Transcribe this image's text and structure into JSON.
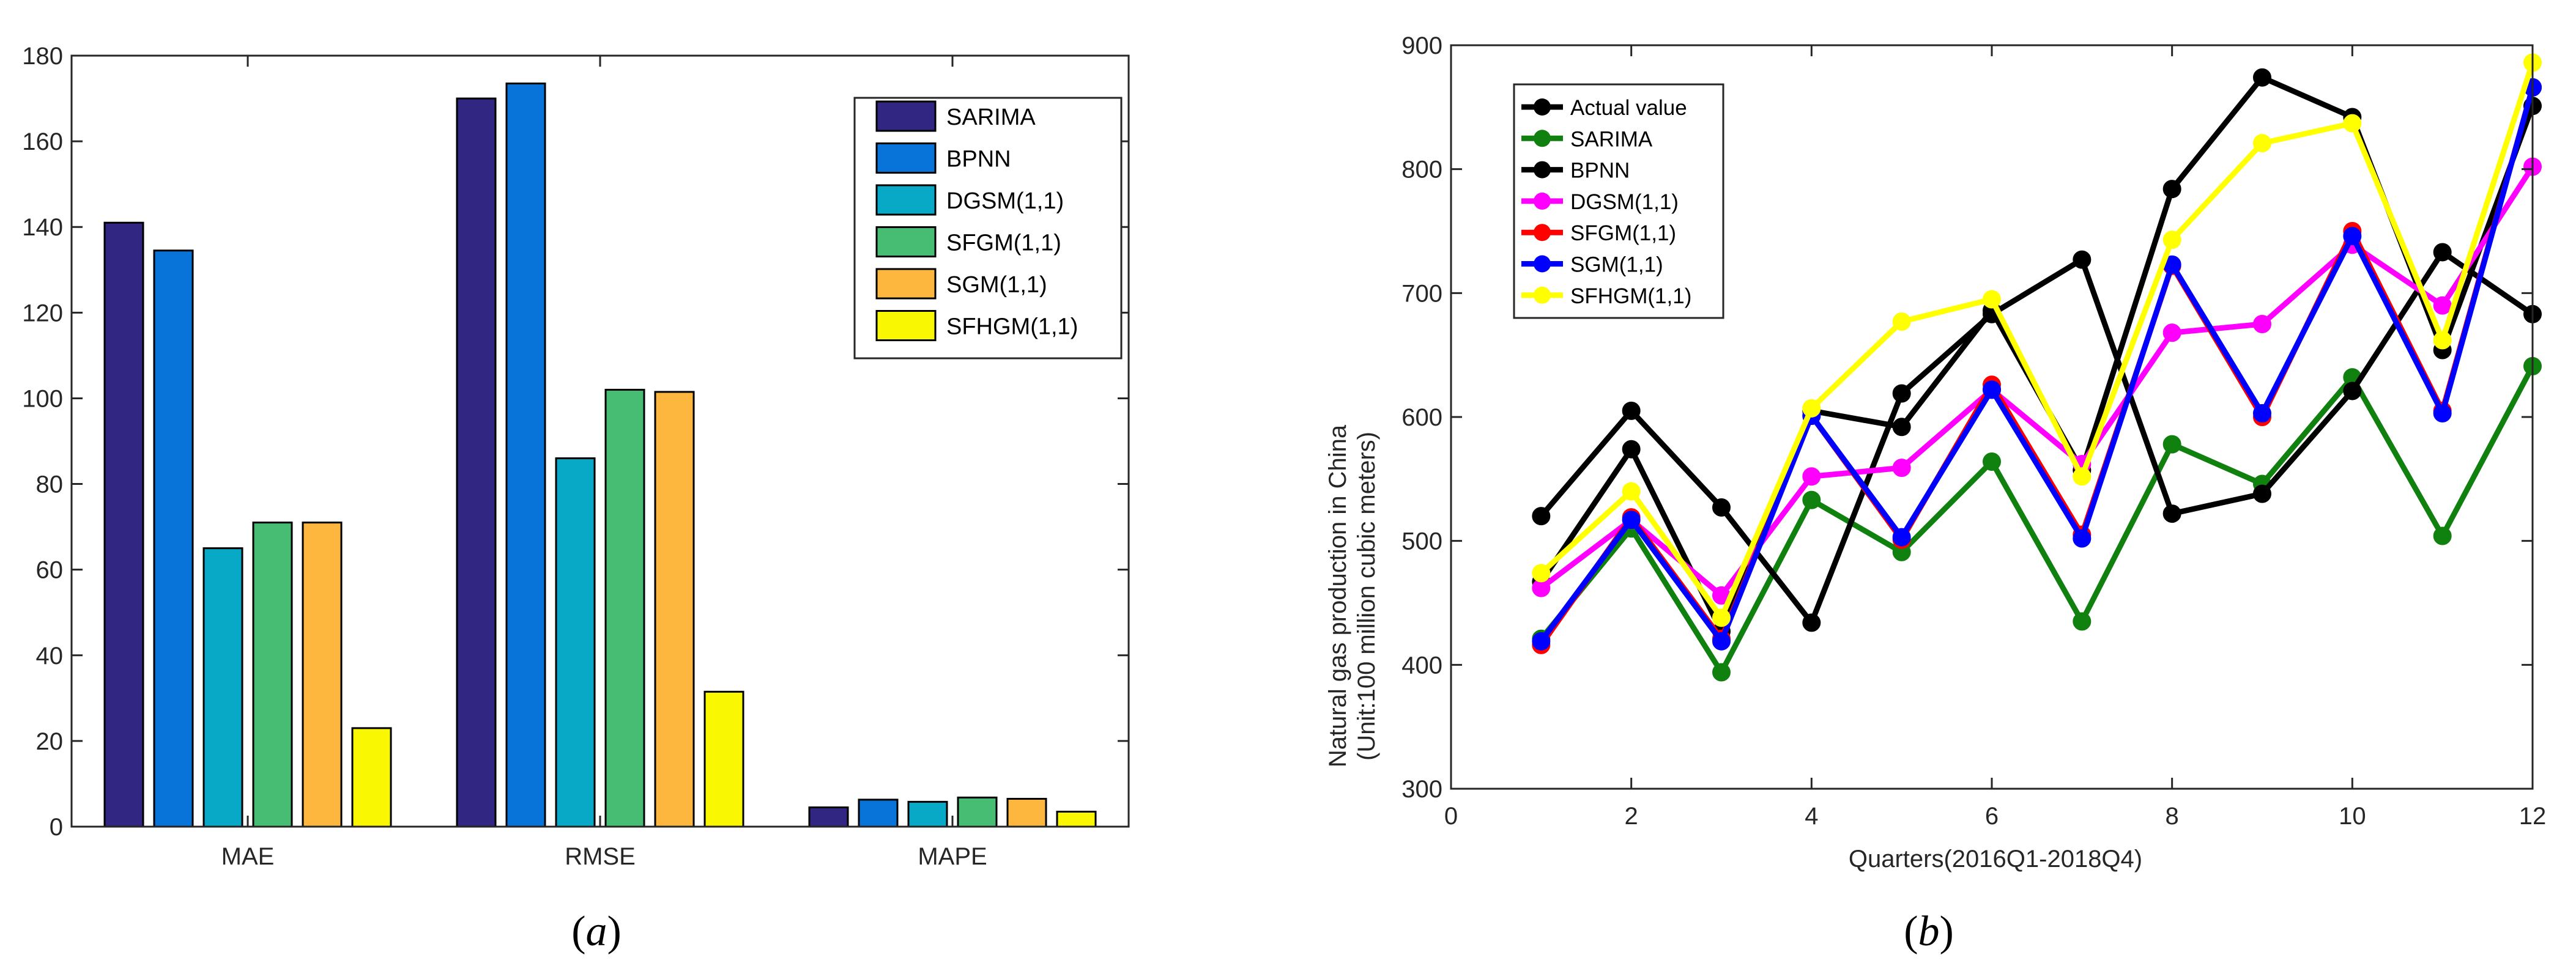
{
  "chart_data": [
    {
      "id": "a",
      "type": "bar",
      "panel_label": "(a)",
      "panel_letter": "a",
      "title": "",
      "xlabel": "",
      "ylabel": "",
      "categories": [
        "MAE",
        "RMSE",
        "MAPE"
      ],
      "ylim": [
        0,
        180
      ],
      "yticks": [
        0,
        20,
        40,
        60,
        80,
        100,
        120,
        140,
        160,
        180
      ],
      "legend_position": "top-right",
      "grid": false,
      "series": [
        {
          "name": "SARIMA",
          "color": "#312783",
          "values": [
            141,
            170,
            4.5
          ]
        },
        {
          "name": "BPNN",
          "color": "#0873d9",
          "values": [
            134.5,
            173.5,
            6.3
          ]
        },
        {
          "name": "DGSM(1,1)",
          "color": "#08a9c6",
          "values": [
            65,
            86,
            5.8
          ]
        },
        {
          "name": "SFGM(1,1)",
          "color": "#46bd73",
          "values": [
            71,
            102,
            6.8
          ]
        },
        {
          "name": "SGM(1,1)",
          "color": "#fdb73f",
          "values": [
            71,
            101.5,
            6.5
          ]
        },
        {
          "name": "SFHGM(1,1)",
          "color": "#f9f701",
          "values": [
            23,
            31.5,
            3.5
          ]
        }
      ]
    },
    {
      "id": "b",
      "type": "line",
      "panel_label": "(b)",
      "panel_letter": "b",
      "title": "",
      "xlabel": "Quarters(2016Q1-2018Q4)",
      "ylabel_line1": "Natural gas production in China",
      "ylabel_line2": "(Unit:100 million cubic meters)",
      "xlim": [
        0,
        12
      ],
      "ylim": [
        300,
        900
      ],
      "xticks": [
        0,
        2,
        4,
        6,
        8,
        10,
        12
      ],
      "yticks": [
        300,
        400,
        500,
        600,
        700,
        800,
        900
      ],
      "legend_position": "top-left",
      "grid": false,
      "x": [
        1,
        2,
        3,
        4,
        5,
        6,
        7,
        8,
        9,
        10,
        11,
        12
      ],
      "series": [
        {
          "name": "Actual value",
          "color": "#000000",
          "values": [
            467,
            574,
            427,
            605,
            592,
            686,
            557,
            784,
            874,
            842,
            654,
            851
          ]
        },
        {
          "name": "SARIMA",
          "color": "#10800f",
          "values": [
            421,
            510,
            394,
            533,
            491,
            564,
            435,
            578,
            546,
            632,
            504,
            641
          ]
        },
        {
          "name": "BPNN",
          "color": "#000000",
          "values": [
            520,
            605,
            527,
            434,
            619,
            683,
            727,
            522,
            538,
            621,
            733,
            683
          ]
        },
        {
          "name": "DGSM(1,1)",
          "color": "#ff00ff",
          "values": [
            462,
            517,
            456,
            552,
            559,
            622,
            562,
            668,
            675,
            739,
            690,
            802
          ]
        },
        {
          "name": "SFGM(1,1)",
          "color": "#ff0000",
          "values": [
            416,
            519,
            421,
            601,
            501,
            626,
            505,
            722,
            600,
            750,
            605,
            866
          ]
        },
        {
          "name": "SGM(1,1)",
          "color": "#0000ff",
          "values": [
            419,
            517,
            419,
            601,
            503,
            622,
            502,
            723,
            603,
            746,
            603,
            866
          ]
        },
        {
          "name": "SFHGM(1,1)",
          "color": "#ffff00",
          "values": [
            474,
            540,
            438,
            607,
            677,
            695,
            552,
            743,
            821,
            837,
            662,
            886
          ]
        }
      ]
    }
  ]
}
